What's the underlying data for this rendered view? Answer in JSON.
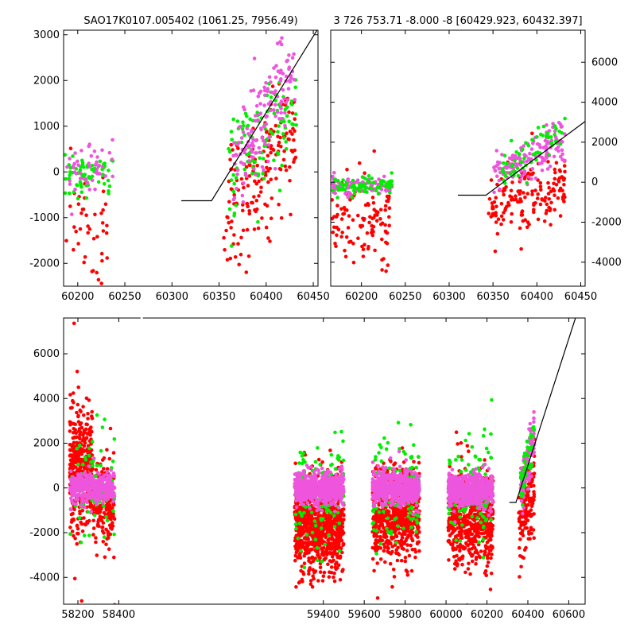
{
  "titles": {
    "left": "SAO17K0107.005402 (1061.25, 7956.49)",
    "right": "3 726 753.71 -8.000 -8 [60429.923, 60432.397]"
  },
  "colors": {
    "red": "#ff0000",
    "green": "#00ee00",
    "magenta": "#ee55dd",
    "line": "#000000"
  },
  "chart_data": [
    {
      "id": "top-left",
      "type": "scatter",
      "title": "SAO17K0107.005402 (1061.25, 7956.49)",
      "xlim": [
        60185,
        60455
      ],
      "ylim": [
        -2500,
        3100
      ],
      "xticks": [
        60200,
        60250,
        60300,
        60350,
        60400,
        60450
      ],
      "yticks": [
        -2000,
        -1000,
        0,
        1000,
        2000,
        3000
      ],
      "ytick_side": "left",
      "clusters": [
        {
          "color": "red",
          "n": 45,
          "x": [
            60186,
            60232
          ],
          "y": -1300,
          "spread": 700
        },
        {
          "color": "green",
          "n": 70,
          "x": [
            60186,
            60238
          ],
          "y": -60,
          "spread": 220
        },
        {
          "color": "magenta",
          "n": 45,
          "x": [
            60186,
            60238
          ],
          "y": 0,
          "spread": 300
        },
        {
          "color": "red",
          "n": 170,
          "x": [
            60355,
            60432
          ],
          "y0": -900,
          "y1": 700,
          "spread": 650
        },
        {
          "color": "green",
          "n": 110,
          "x": [
            60360,
            60432
          ],
          "y0": 0,
          "y1": 1500,
          "spread": 500
        },
        {
          "color": "magenta",
          "n": 150,
          "x": [
            60365,
            60432
          ],
          "y0": 100,
          "y1": 2400,
          "spread": 450
        }
      ],
      "model_line": [
        [
          60310,
          -630
        ],
        [
          60342,
          -630
        ],
        [
          60460,
          3300
        ]
      ]
    },
    {
      "id": "top-right",
      "type": "scatter",
      "title": "3 726 753.71 -8.000 -8 [60429.923, 60432.397]",
      "xlim": [
        60165,
        60455
      ],
      "ylim": [
        -5200,
        7600
      ],
      "xticks": [
        60200,
        60250,
        60300,
        60350,
        60400,
        60450
      ],
      "yticks": [
        -4000,
        -2000,
        0,
        2000,
        4000,
        6000
      ],
      "ytick_side": "right",
      "clusters": [
        {
          "color": "red",
          "n": 110,
          "x": [
            60166,
            60232
          ],
          "y": -2200,
          "spread": 1100
        },
        {
          "color": "magenta",
          "n": 120,
          "x": [
            60166,
            60235
          ],
          "y": -200,
          "spread": 220
        },
        {
          "color": "green",
          "n": 70,
          "x": [
            60166,
            60235
          ],
          "y": -150,
          "spread": 200
        },
        {
          "color": "red",
          "n": 160,
          "x": [
            60345,
            60432
          ],
          "y0": -1500,
          "y1": 0,
          "spread": 850
        },
        {
          "color": "magenta",
          "n": 140,
          "x": [
            60350,
            60432
          ],
          "y0": 300,
          "y1": 2200,
          "spread": 500
        },
        {
          "color": "green",
          "n": 60,
          "x": [
            60360,
            60432
          ],
          "y0": 500,
          "y1": 2600,
          "spread": 500
        }
      ],
      "model_line": [
        [
          60310,
          -650
        ],
        [
          60342,
          -650
        ],
        [
          60460,
          3200
        ]
      ]
    },
    {
      "id": "bottom",
      "type": "scatter",
      "xlim": [
        58130,
        60680
      ],
      "ylim": [
        -5200,
        7600
      ],
      "xticks": [
        58200,
        58400,
        59400,
        59600,
        59800,
        60000,
        60200,
        60400,
        60600
      ],
      "yticks": [
        -4000,
        -2000,
        0,
        2000,
        4000,
        6000
      ],
      "ytick_side": "left",
      "axis_break_x": 58510,
      "clusters": [
        {
          "color": "red",
          "n": 420,
          "x": [
            58160,
            58270
          ],
          "y": 900,
          "spread": 1300
        },
        {
          "color": "red",
          "n": 200,
          "x": [
            58270,
            58380
          ],
          "y": -500,
          "spread": 900
        },
        {
          "color": "green",
          "n": 80,
          "x": [
            58160,
            58380
          ],
          "y": 0,
          "spread": 1200
        },
        {
          "color": "magenta",
          "n": 380,
          "x": [
            58160,
            58380
          ],
          "y": 0,
          "spread": 320
        },
        {
          "color": "red",
          "n": 900,
          "x": [
            59260,
            59500
          ],
          "y": -1700,
          "spread": 1000
        },
        {
          "color": "green",
          "n": 140,
          "x": [
            59260,
            59500
          ],
          "y": -300,
          "spread": 1200
        },
        {
          "color": "magenta",
          "n": 650,
          "x": [
            59260,
            59500
          ],
          "y": -40,
          "spread": 320
        },
        {
          "color": "red",
          "n": 650,
          "x": [
            59640,
            59870
          ],
          "y": -1200,
          "spread": 1000
        },
        {
          "color": "green",
          "n": 120,
          "x": [
            59640,
            59870
          ],
          "y": -100,
          "spread": 1200
        },
        {
          "color": "magenta",
          "n": 600,
          "x": [
            59640,
            59870
          ],
          "y": 0,
          "spread": 350
        },
        {
          "color": "red",
          "n": 600,
          "x": [
            60010,
            60230
          ],
          "y": -1400,
          "spread": 1000
        },
        {
          "color": "green",
          "n": 120,
          "x": [
            60010,
            60230
          ],
          "y": -200,
          "spread": 1200
        },
        {
          "color": "magenta",
          "n": 550,
          "x": [
            60010,
            60230
          ],
          "y": -100,
          "spread": 350
        },
        {
          "color": "red",
          "n": 150,
          "x": [
            60355,
            60432
          ],
          "y0": -1800,
          "y1": 0,
          "spread": 900
        },
        {
          "color": "magenta",
          "n": 120,
          "x": [
            60365,
            60432
          ],
          "y0": 0,
          "y1": 2300,
          "spread": 500
        },
        {
          "color": "green",
          "n": 50,
          "x": [
            60365,
            60432
          ],
          "y0": 0,
          "y1": 2500,
          "spread": 500
        }
      ],
      "model_line": [
        [
          60310,
          -650
        ],
        [
          60342,
          -650
        ],
        [
          60700,
          9500
        ]
      ]
    }
  ]
}
